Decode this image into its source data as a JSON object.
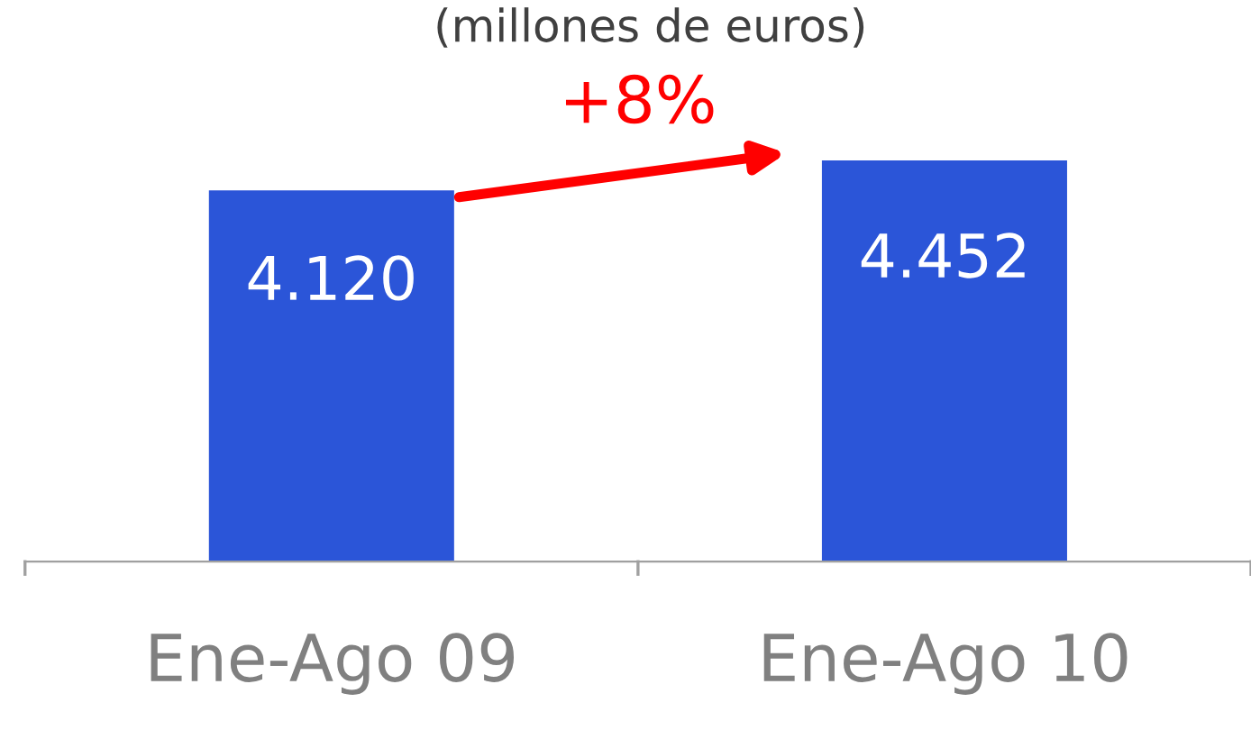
{
  "chart_data": {
    "type": "bar",
    "title": "(millones de euros)",
    "categories": [
      "Ene-Ago 09",
      "Ene-Ago 10"
    ],
    "series": [
      {
        "color": "#2b55d8",
        "values": [
          4120,
          4452
        ],
        "value_labels": [
          "4.120",
          "4.452"
        ]
      }
    ],
    "annotations": [
      "+8%"
    ],
    "grid": false,
    "legend": false
  }
}
